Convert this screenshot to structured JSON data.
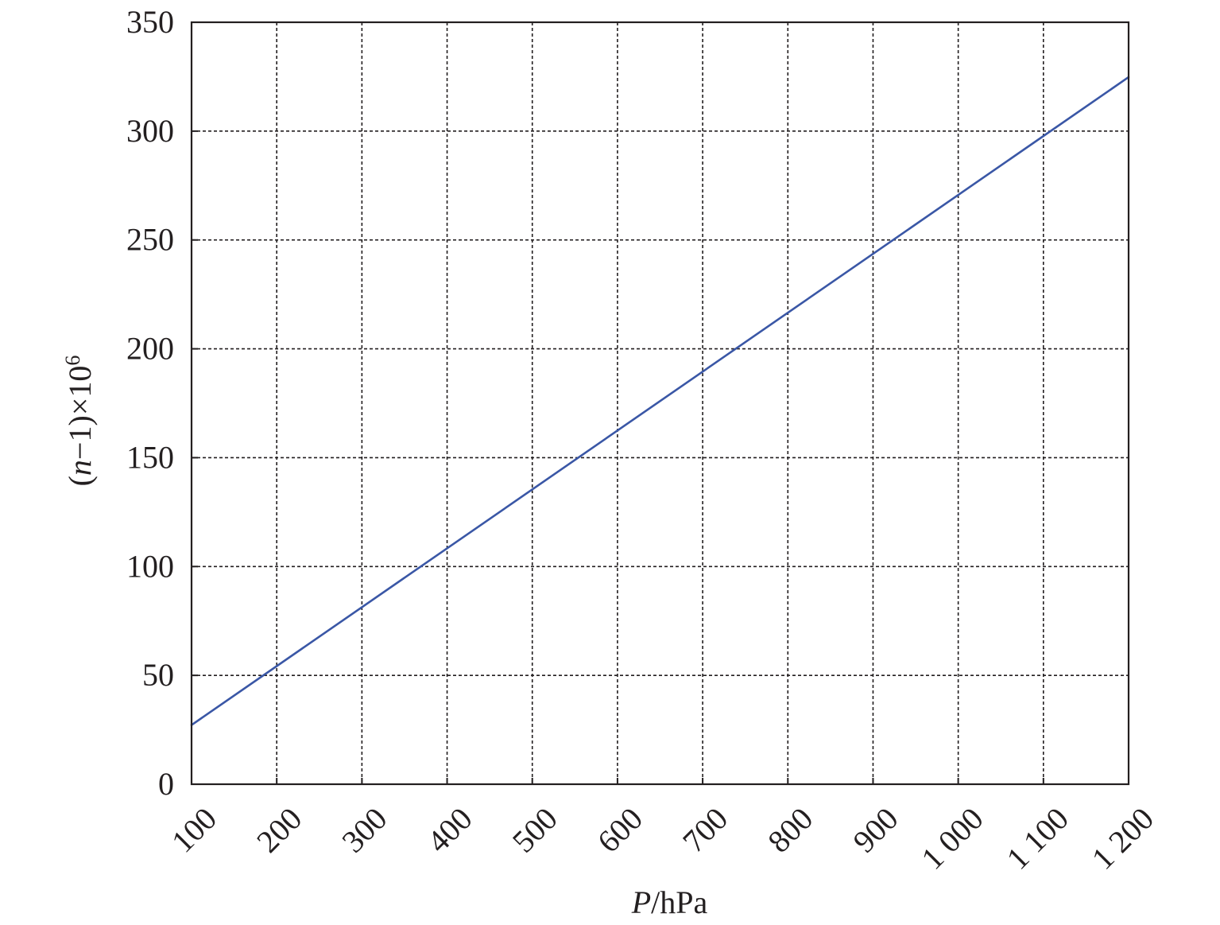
{
  "chart_data": {
    "type": "line",
    "xlabel_italic": "P",
    "xlabel_rest": "/hPa",
    "ylabel_pre": "(",
    "ylabel_italic": "n",
    "ylabel_mid": "−1)×10",
    "ylabel_sup": "6",
    "xlim": [
      100,
      1200
    ],
    "ylim": [
      0,
      350
    ],
    "x_ticks": [
      100,
      200,
      300,
      400,
      500,
      600,
      700,
      800,
      900,
      1000,
      1100,
      1200
    ],
    "x_tick_labels": [
      "100",
      "200",
      "300",
      "400",
      "500",
      "600",
      "700",
      "800",
      "900",
      "1 000",
      "1 100",
      "1 200"
    ],
    "y_ticks": [
      0,
      50,
      100,
      150,
      200,
      250,
      300,
      350
    ],
    "y_tick_labels": [
      "0",
      "50",
      "100",
      "150",
      "200",
      "250",
      "300",
      "350"
    ],
    "grid": true,
    "series": [
      {
        "color": "#3a57a6",
        "x": [
          100,
          1200
        ],
        "y": [
          27.2,
          324.8
        ]
      }
    ]
  }
}
